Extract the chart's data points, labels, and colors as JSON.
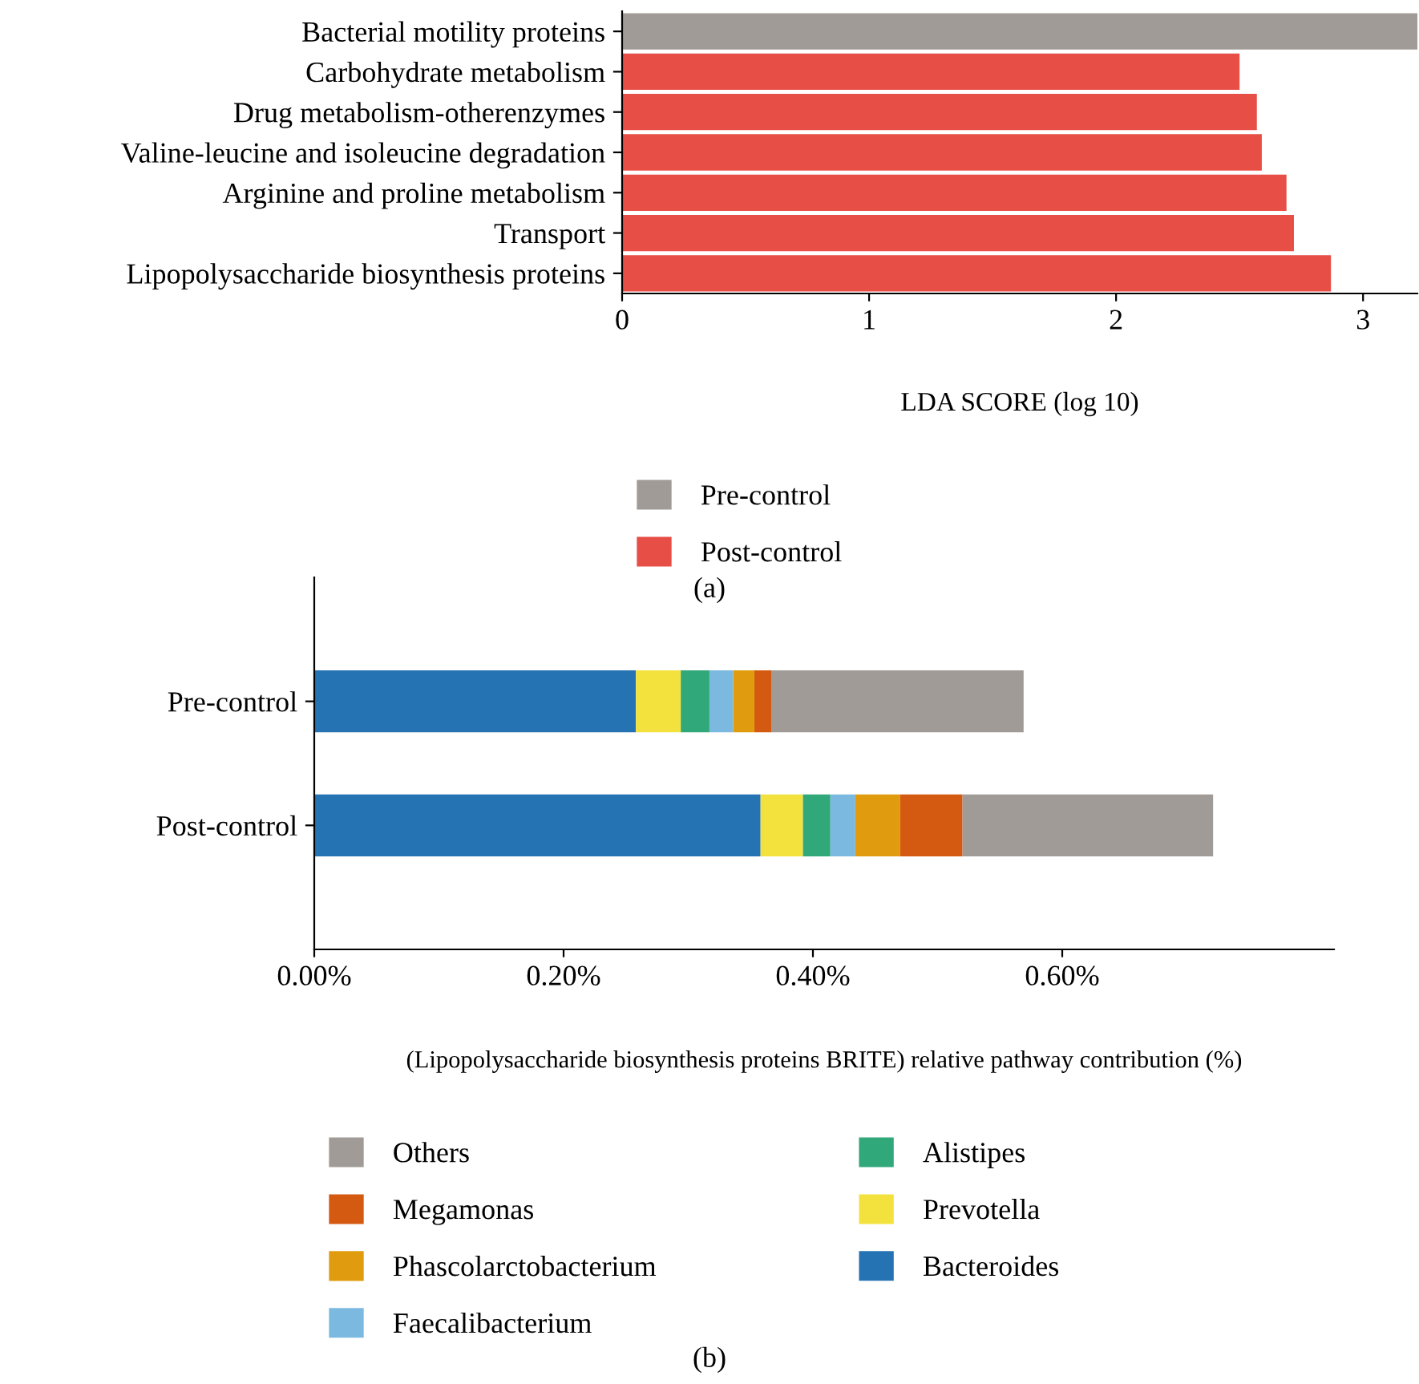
{
  "chart_data": [
    {
      "type": "bar",
      "orientation": "horizontal",
      "categories": [
        "Bacterial motility proteins",
        "Carbohydrate metabolism",
        "Drug metabolism-otherenzymes",
        "Valine-leucine and isoleucine degradation",
        "Arginine and proline metabolism",
        "Transport",
        "Lipopolysaccharide biosynthesis proteins"
      ],
      "series": [
        {
          "name": "Pre-control",
          "color": "#a09b97",
          "values": [
            3.22,
            null,
            null,
            null,
            null,
            null,
            null
          ]
        },
        {
          "name": "Post-control",
          "color": "#e64e46",
          "values": [
            null,
            2.5,
            2.57,
            2.59,
            2.69,
            2.72,
            2.87
          ]
        }
      ],
      "xlim": [
        0,
        3.22
      ],
      "xticks": [
        0,
        1,
        2,
        3
      ],
      "xlabel": "LDA SCORE (log 10)",
      "legend": "bottom",
      "grid": false,
      "annotations": [
        "(a)"
      ]
    },
    {
      "type": "bar",
      "orientation": "horizontal",
      "stacked": true,
      "categories": [
        "Pre-control",
        "Post-control"
      ],
      "series": [
        {
          "name": "Bacteroides",
          "color": "#2573b2",
          "values": [
            0.258,
            0.358
          ]
        },
        {
          "name": "Prevotella",
          "color": "#f3e23d",
          "values": [
            0.036,
            0.034
          ]
        },
        {
          "name": "Alistipes",
          "color": "#30a87a",
          "values": [
            0.023,
            0.022
          ]
        },
        {
          "name": "Faecalibacterium",
          "color": "#7cb9e0",
          "values": [
            0.019,
            0.02
          ]
        },
        {
          "name": "Phascolarctobacterium",
          "color": "#e09c0e",
          "values": [
            0.017,
            0.036
          ]
        },
        {
          "name": "Megamonas",
          "color": "#d55a11",
          "values": [
            0.014,
            0.05
          ]
        },
        {
          "name": "Others",
          "color": "#a09b97",
          "values": [
            0.202,
            0.201
          ]
        }
      ],
      "xlim": [
        0,
        0.818
      ],
      "xticks": [
        {
          "value": 0,
          "label": "0.00%"
        },
        {
          "value": 0.2,
          "label": "0.20%"
        },
        {
          "value": 0.4,
          "label": "0.40%"
        },
        {
          "value": 0.6,
          "label": "0.60%"
        }
      ],
      "xlabel": "(Lipopolysaccharide biosynthesis proteins BRITE) relative pathway contribution (%)",
      "legend": "bottom",
      "grid": false,
      "annotations": [
        "(b)"
      ]
    }
  ]
}
